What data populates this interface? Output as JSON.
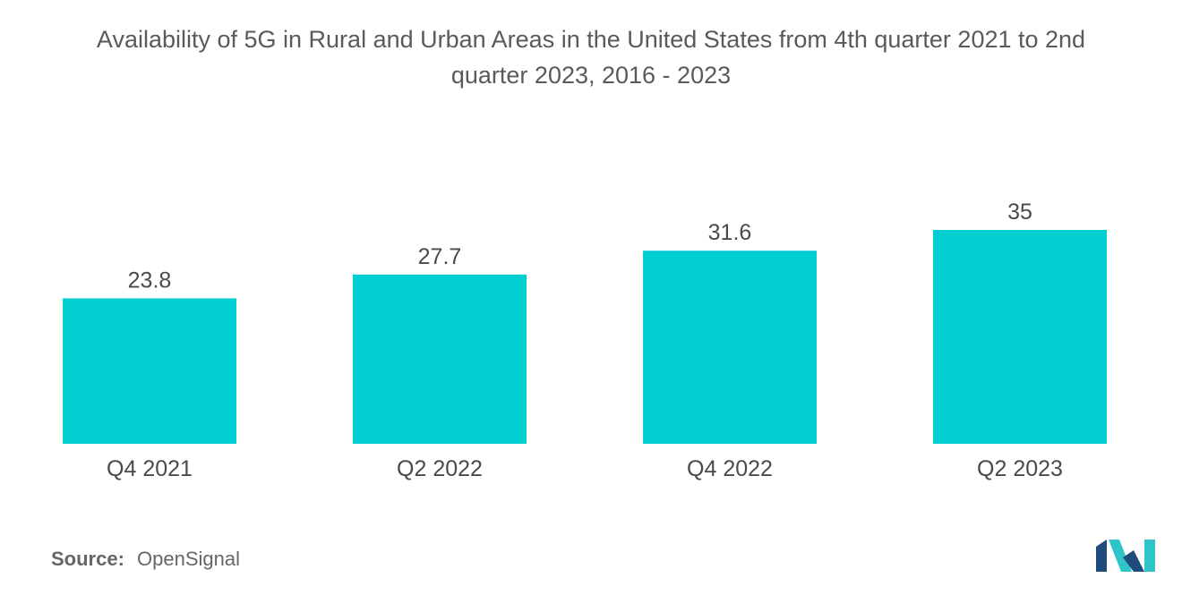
{
  "title_line1": "Availability of 5G in Rural and Urban Areas in the United States from 4th quarter 2021 to 2nd",
  "title_line2": "quarter 2023, 2016 - 2023",
  "source": {
    "label": "Source:",
    "value": "OpenSignal"
  },
  "colors": {
    "bar": "#00CED1",
    "text": "#555555",
    "logo_dark": "#1E4B7A",
    "logo_light": "#2EC4C8"
  },
  "chart_data": {
    "type": "bar",
    "title": "Availability of 5G in Rural and Urban Areas in the United States from 4th quarter 2021 to 2nd quarter 2023, 2016 - 2023",
    "categories": [
      "Q4 2021",
      "Q2 2022",
      "Q4 2022",
      "Q2 2023"
    ],
    "values": [
      23.8,
      27.7,
      31.6,
      35
    ],
    "value_labels": [
      "23.8",
      "27.7",
      "31.6",
      "35"
    ],
    "xlabel": "",
    "ylabel": "",
    "ylim": [
      0,
      35
    ],
    "grid": false,
    "legend": "none"
  }
}
